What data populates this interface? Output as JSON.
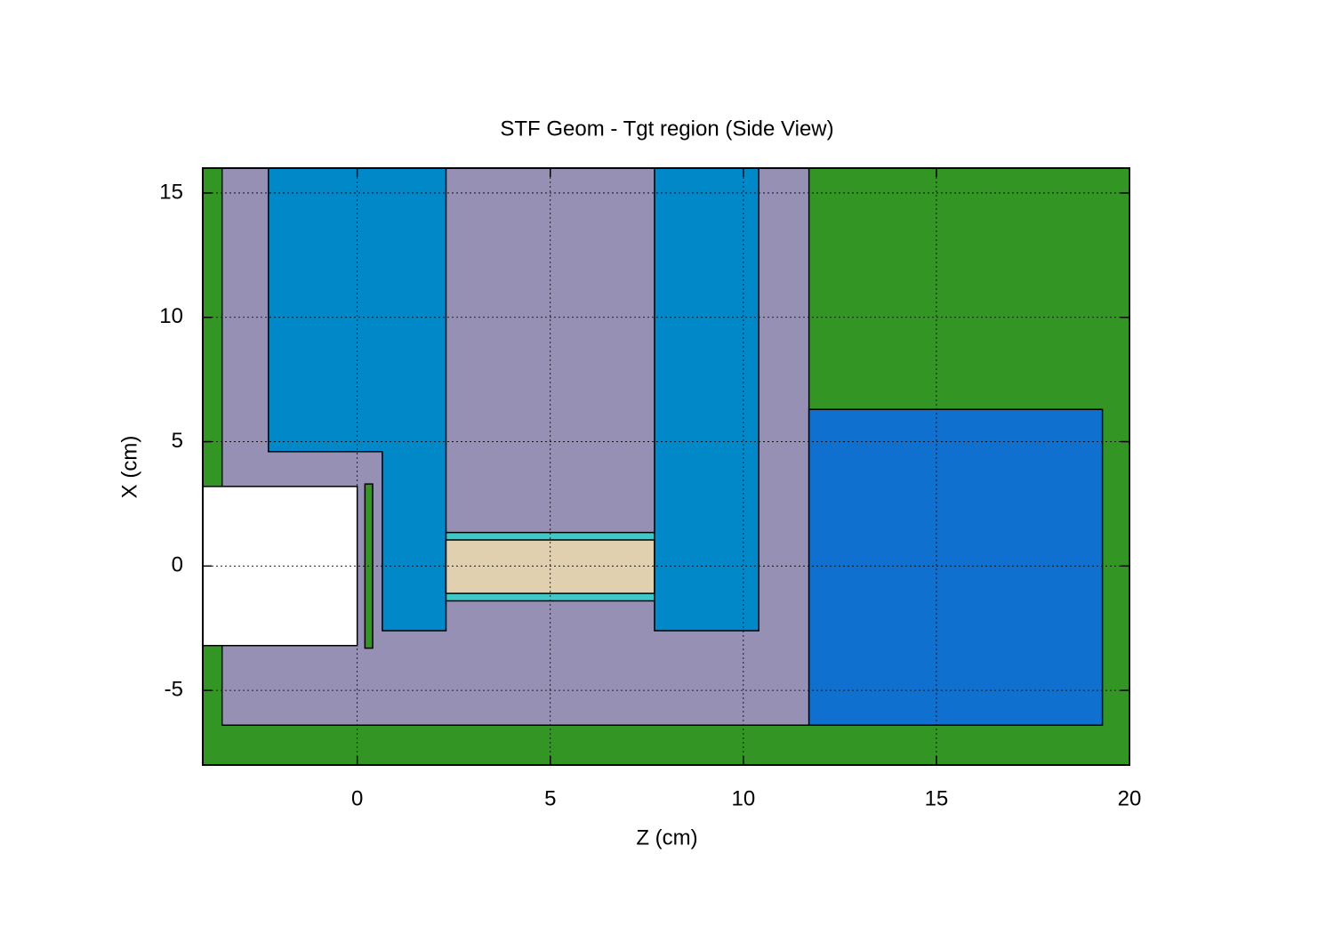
{
  "chart_data": {
    "type": "geometry",
    "title": "STF Geom - Tgt region (Side View)",
    "xlabel": "Z (cm)",
    "ylabel": "X (cm)",
    "xlim": [
      -4,
      20
    ],
    "ylim": [
      -8,
      16
    ],
    "xticks": [
      0,
      5,
      10,
      15,
      20
    ],
    "yticks": [
      -5,
      0,
      5,
      10,
      15
    ],
    "grid": true,
    "shapes": [
      {
        "color": "#339624",
        "z": [
          -4,
          20,
          20,
          -4
        ],
        "x": [
          16,
          16,
          -8,
          -8
        ]
      },
      {
        "color": "#9590b4",
        "z": [
          -3.5,
          11.7,
          11.7,
          -3.5
        ],
        "x": [
          16,
          16,
          -6.4,
          -6.4
        ]
      },
      {
        "color": "#ffffff",
        "z": [
          -4,
          0,
          0,
          -4
        ],
        "x": [
          3.2,
          3.2,
          -3.2,
          -3.2
        ]
      },
      {
        "color": "#339624",
        "z": [
          0.2,
          0.4,
          0.4,
          0.2
        ],
        "x": [
          3.3,
          3.3,
          -3.3,
          -3.3
        ]
      },
      {
        "color": "#0088c8",
        "z": [
          -2.3,
          2.3,
          2.3,
          0.65,
          0.65,
          -2.3
        ],
        "x": [
          16,
          16,
          -2.6,
          -2.6,
          4.6,
          4.6
        ]
      },
      {
        "color": "#40c8c8",
        "z": [
          2.3,
          7.7,
          7.7,
          2.3
        ],
        "x": [
          1.35,
          1.35,
          -1.4,
          -1.4
        ]
      },
      {
        "color": "#e0d0b0",
        "z": [
          2.3,
          7.7,
          7.7,
          2.3
        ],
        "x": [
          1.05,
          1.05,
          -1.1,
          -1.1
        ]
      },
      {
        "color": "#0088c8",
        "z": [
          7.7,
          10.4,
          10.4,
          7.7
        ],
        "x": [
          16,
          16,
          -2.6,
          -2.6
        ]
      },
      {
        "color": "#1070d0",
        "z": [
          11.7,
          19.3,
          19.3,
          11.7
        ],
        "x": [
          6.3,
          6.3,
          -6.4,
          -6.4
        ]
      }
    ]
  }
}
